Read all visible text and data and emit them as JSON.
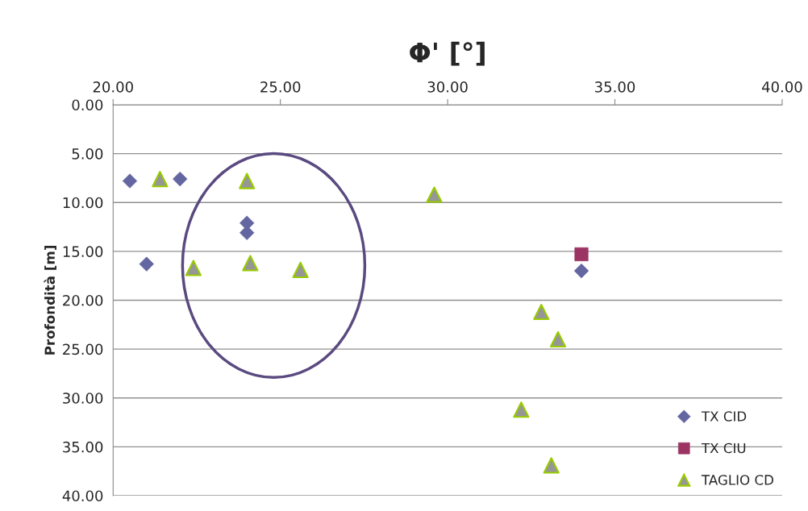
{
  "chart_data": {
    "type": "scatter",
    "title": "Φ' [°]",
    "ylabel": "Profondità [m]",
    "xlim": [
      20,
      40
    ],
    "xticks": [
      {
        "value": 20,
        "label": "20.00"
      },
      {
        "value": 25,
        "label": "25.00"
      },
      {
        "value": 30,
        "label": "30.00"
      },
      {
        "value": 35,
        "label": "35.00"
      },
      {
        "value": 40,
        "label": "40.00"
      }
    ],
    "ylim": [
      40,
      0
    ],
    "yticks": [
      {
        "value": 0,
        "label": "0.00"
      },
      {
        "value": 5,
        "label": "5.00"
      },
      {
        "value": 10,
        "label": "10.00"
      },
      {
        "value": 15,
        "label": "15.00"
      },
      {
        "value": 20,
        "label": "20.00"
      },
      {
        "value": 25,
        "label": "25.00"
      },
      {
        "value": 30,
        "label": "30.00"
      },
      {
        "value": 35,
        "label": "35.00"
      },
      {
        "value": 40,
        "label": "40.00"
      }
    ],
    "grid": "y",
    "legend": "bottom right",
    "series": [
      {
        "name": "TX CID",
        "color": "#6366a0",
        "marker": "diamond",
        "x": [
          20.5,
          22.0,
          24.0,
          24.0,
          21.0,
          34.0
        ],
        "values": [
          7.8,
          7.6,
          12.1,
          13.1,
          16.3,
          17.0
        ]
      },
      {
        "name": "TX CIU",
        "color": "#9b3462",
        "marker": "square",
        "x": [
          34.0
        ],
        "values": [
          15.3
        ]
      },
      {
        "name": "TAGLIO CD",
        "color": "#969696",
        "marker": "triangle",
        "x": [
          21.4,
          24.0,
          29.6,
          22.4,
          24.1,
          25.6,
          32.8,
          33.3,
          32.2,
          33.1
        ],
        "values": [
          7.6,
          7.8,
          9.2,
          16.7,
          16.2,
          16.9,
          21.2,
          24.0,
          31.2,
          36.9
        ]
      }
    ]
  }
}
